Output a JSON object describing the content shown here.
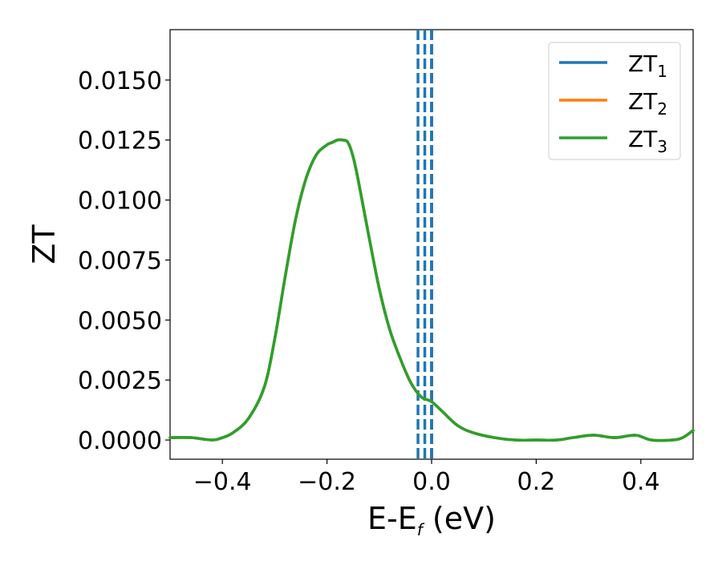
{
  "chart_data": {
    "type": "line",
    "title": "",
    "xlabel": {
      "main": "E-E",
      "sub": "f",
      "suffix": " (eV)"
    },
    "ylabel": "ZT",
    "xlim": [
      -0.5,
      0.5
    ],
    "ylim": [
      -0.0008,
      0.0171
    ],
    "xticks": [
      -0.4,
      -0.2,
      0.0,
      0.2,
      0.4
    ],
    "xtick_labels": [
      "−0.4",
      "−0.2",
      "0.0",
      "0.2",
      "0.4"
    ],
    "yticks": [
      0.0,
      0.0025,
      0.005,
      0.0075,
      0.01,
      0.0125,
      0.015
    ],
    "ytick_labels": [
      "0.0000",
      "0.0025",
      "0.0050",
      "0.0075",
      "0.0100",
      "0.0125",
      "0.0150"
    ],
    "grid": false,
    "legend_position": "top-right",
    "x": [
      -0.5,
      -0.46,
      -0.42,
      -0.4,
      -0.38,
      -0.35,
      -0.32,
      -0.3,
      -0.28,
      -0.26,
      -0.24,
      -0.22,
      -0.2,
      -0.19,
      -0.18,
      -0.17,
      -0.16,
      -0.15,
      -0.14,
      -0.12,
      -0.1,
      -0.08,
      -0.06,
      -0.04,
      -0.02,
      0.0,
      0.02,
      0.05,
      0.08,
      0.12,
      0.16,
      0.2,
      0.24,
      0.27,
      0.31,
      0.35,
      0.39,
      0.42,
      0.46,
      0.48,
      0.5
    ],
    "series": [
      {
        "name": "ZT",
        "sub": "1",
        "color": "#1f77b4",
        "values": [
          0.0001,
          0.0001,
          0.0,
          0.0001,
          0.0003,
          0.0009,
          0.0022,
          0.0042,
          0.0068,
          0.0092,
          0.0109,
          0.0119,
          0.0123,
          0.0124,
          0.0125,
          0.0125,
          0.0124,
          0.0118,
          0.0108,
          0.0085,
          0.0063,
          0.0046,
          0.0034,
          0.0024,
          0.0018,
          0.0016,
          0.0012,
          0.0006,
          0.0003,
          0.0001,
          0.0,
          0.0,
          0.0,
          0.0001,
          0.0002,
          0.0001,
          0.0002,
          0.0,
          0.0,
          0.0001,
          0.0004
        ]
      },
      {
        "name": "ZT",
        "sub": "2",
        "color": "#ff7f0e",
        "values": [
          0.0001,
          0.0001,
          0.0,
          0.0001,
          0.0003,
          0.0009,
          0.0022,
          0.0042,
          0.0068,
          0.0092,
          0.0109,
          0.0119,
          0.0123,
          0.0124,
          0.0125,
          0.0125,
          0.0124,
          0.0118,
          0.0108,
          0.0085,
          0.0063,
          0.0046,
          0.0034,
          0.0024,
          0.0018,
          0.0016,
          0.0012,
          0.0006,
          0.0003,
          0.0001,
          0.0,
          0.0,
          0.0,
          0.0001,
          0.0002,
          0.0001,
          0.0002,
          0.0,
          0.0,
          0.0001,
          0.0004
        ]
      },
      {
        "name": "ZT",
        "sub": "3",
        "color": "#2ca02c",
        "values": [
          0.0001,
          0.0001,
          0.0,
          0.0001,
          0.0003,
          0.0009,
          0.0022,
          0.0042,
          0.0068,
          0.0092,
          0.0109,
          0.0119,
          0.0123,
          0.0124,
          0.0125,
          0.0125,
          0.0124,
          0.0118,
          0.0108,
          0.0085,
          0.0063,
          0.0046,
          0.0034,
          0.0024,
          0.0018,
          0.0016,
          0.0012,
          0.0006,
          0.0003,
          0.0001,
          0.0,
          0.0,
          0.0,
          0.0001,
          0.0002,
          0.0001,
          0.0002,
          0.0,
          0.0,
          0.0001,
          0.0004
        ]
      }
    ],
    "vlines": [
      {
        "x": -0.026,
        "color": "#1f77b4",
        "style": "dashed"
      },
      {
        "x": -0.013,
        "color": "#1f77b4",
        "style": "dashed"
      },
      {
        "x": 0.0,
        "color": "#000000",
        "style": "dashed"
      },
      {
        "x": 0.0,
        "color": "#1f77b4",
        "style": "dashed"
      }
    ]
  }
}
